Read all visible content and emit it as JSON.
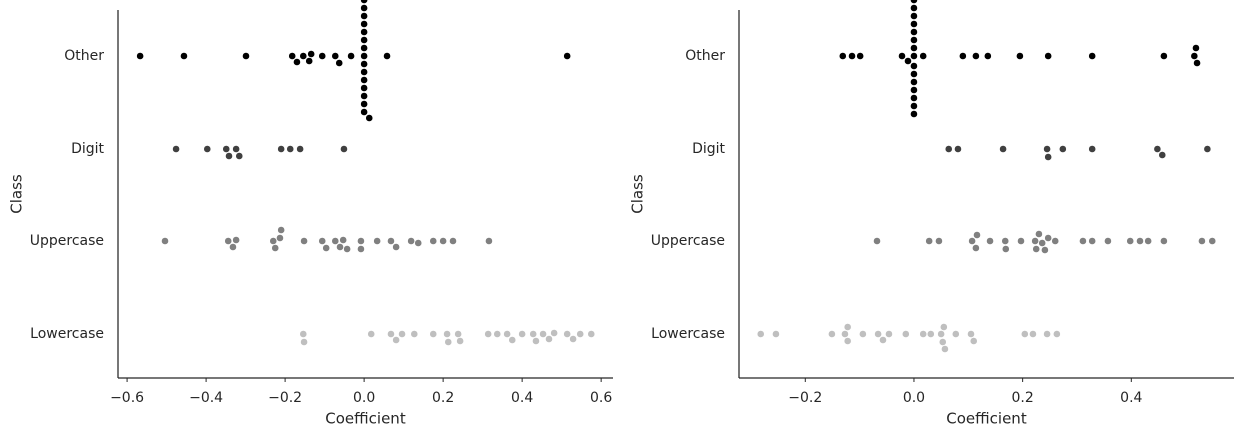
{
  "chart_data": [
    {
      "type": "swarm",
      "xlabel": "Coefficient",
      "ylabel": "Class",
      "categories": [
        "Other",
        "Digit",
        "Uppercase",
        "Lowercase"
      ],
      "colors": [
        "#000000",
        "#404040",
        "#808080",
        "#bfbfbf"
      ],
      "xlim": [
        -0.623,
        0.63
      ],
      "xticks": [
        {
          "value": -0.6,
          "label": "−0.6"
        },
        {
          "value": -0.4,
          "label": "−0.4"
        },
        {
          "value": -0.2,
          "label": "−0.2"
        },
        {
          "value": 0,
          "label": "0.0"
        },
        0.2,
        0.4,
        0.6
      ],
      "values": [
        [
          -0.567,
          -0.456,
          -0.299,
          -0.182,
          -0.17,
          -0.154,
          -0.139,
          -0.134,
          -0.106,
          -0.073,
          -0.063,
          -0.033,
          0,
          0,
          0,
          0,
          0,
          0,
          0,
          0,
          0,
          0,
          0,
          0,
          0,
          0,
          0,
          0.013,
          0.058,
          0.514
        ],
        [
          -0.476,
          -0.397,
          -0.349,
          -0.342,
          -0.324,
          -0.316,
          -0.21,
          -0.187,
          -0.162,
          -0.051
        ],
        [
          -0.504,
          -0.344,
          -0.332,
          -0.324,
          -0.23,
          -0.225,
          -0.213,
          -0.21,
          -0.152,
          -0.106,
          -0.096,
          -0.073,
          -0.061,
          -0.053,
          -0.043,
          -0.008,
          -0.008,
          0.033,
          0.068,
          0.081,
          0.119,
          0.137,
          0.175,
          0.2,
          0.225,
          0.316
        ],
        [
          -0.154,
          -0.152,
          0.018,
          0.068,
          0.081,
          0.096,
          0.127,
          0.175,
          0.21,
          0.213,
          0.238,
          0.243,
          0.314,
          0.337,
          0.362,
          0.375,
          0.4,
          0.428,
          0.435,
          0.453,
          0.468,
          0.481,
          0.514,
          0.529,
          0.547,
          0.575
        ]
      ]
    },
    {
      "type": "swarm",
      "xlabel": "Coefficient",
      "ylabel": "Class",
      "categories": [
        "Other",
        "Digit",
        "Uppercase",
        "Lowercase"
      ],
      "colors": [
        "#000000",
        "#404040",
        "#808080",
        "#bfbfbf"
      ],
      "xlim": [
        -0.322,
        0.589
      ],
      "xticks": [
        {
          "value": -0.2,
          "label": "−0.2"
        },
        {
          "value": 0,
          "label": "0.0"
        },
        0.2,
        0.4
      ],
      "values": [
        [
          -0.131,
          -0.114,
          -0.099,
          -0.022,
          -0.011,
          0,
          0,
          0,
          0,
          0,
          0,
          0,
          0,
          0,
          0,
          0,
          0,
          0,
          0,
          0,
          0.017,
          0.09,
          0.114,
          0.136,
          0.195,
          0.247,
          0.328,
          0.46,
          0.516,
          0.521,
          0.519
        ],
        [
          0.064,
          0.081,
          0.164,
          0.245,
          0.247,
          0.274,
          0.328,
          0.448,
          0.457,
          0.54
        ],
        [
          -0.068,
          0.028,
          0.046,
          0.107,
          0.114,
          0.116,
          0.14,
          0.168,
          0.169,
          0.197,
          0.223,
          0.225,
          0.23,
          0.236,
          0.241,
          0.247,
          0.26,
          0.311,
          0.328,
          0.357,
          0.398,
          0.416,
          0.431,
          0.46,
          0.53,
          0.549
        ],
        [
          -0.282,
          -0.254,
          -0.151,
          -0.127,
          -0.122,
          -0.122,
          -0.094,
          -0.066,
          -0.057,
          -0.046,
          -0.015,
          0.017,
          0.031,
          0.05,
          0.053,
          0.055,
          0.057,
          0.077,
          0.105,
          0.11,
          0.204,
          0.219,
          0.245,
          0.263
        ]
      ]
    }
  ]
}
